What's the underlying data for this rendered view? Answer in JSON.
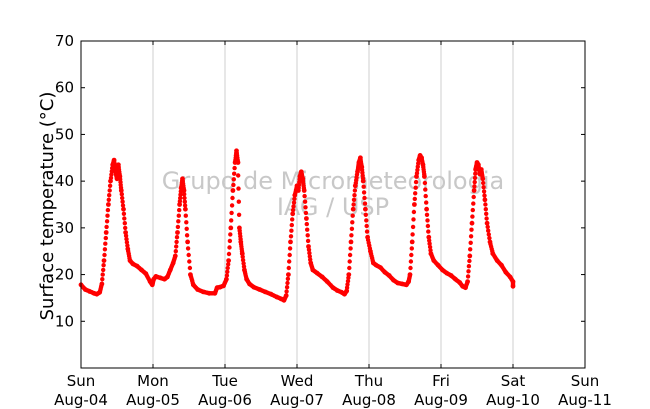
{
  "chart_data": {
    "type": "scatter",
    "ylabel": "Surface temperature (°C)",
    "xlabel": "",
    "title": "",
    "ylim": [
      0,
      70
    ],
    "yticks": [
      10,
      20,
      30,
      40,
      50,
      60,
      70
    ],
    "xlim": [
      0,
      7
    ],
    "xticks": [
      {
        "day": "Sun",
        "date": "Aug-04"
      },
      {
        "day": "Mon",
        "date": "Aug-05"
      },
      {
        "day": "Tue",
        "date": "Aug-06"
      },
      {
        "day": "Wed",
        "date": "Aug-07"
      },
      {
        "day": "Thu",
        "date": "Aug-08"
      },
      {
        "day": "Fri",
        "date": "Aug-09"
      },
      {
        "day": "Sat",
        "date": "Aug-10"
      },
      {
        "day": "Sun",
        "date": "Aug-11"
      }
    ],
    "grid": "vertical",
    "watermark": [
      "Grupo de Micrometeorologia",
      "IAG / USP"
    ],
    "series": [
      {
        "color": "#ff0000",
        "points": [
          [
            0.0,
            17.8
          ],
          [
            0.06,
            16.8
          ],
          [
            0.12,
            16.4
          ],
          [
            0.18,
            16.0
          ],
          [
            0.22,
            15.8
          ],
          [
            0.26,
            16.2
          ],
          [
            0.29,
            18.0
          ],
          [
            0.32,
            23.0
          ],
          [
            0.35,
            29.0
          ],
          [
            0.38,
            35.0
          ],
          [
            0.41,
            40.0
          ],
          [
            0.44,
            43.5
          ],
          [
            0.46,
            44.5
          ],
          [
            0.48,
            42.0
          ],
          [
            0.5,
            40.5
          ],
          [
            0.52,
            43.5
          ],
          [
            0.54,
            41.0
          ],
          [
            0.56,
            38.0
          ],
          [
            0.59,
            34.0
          ],
          [
            0.62,
            29.0
          ],
          [
            0.65,
            25.5
          ],
          [
            0.68,
            23.0
          ],
          [
            0.72,
            22.3
          ],
          [
            0.78,
            21.8
          ],
          [
            0.84,
            21.0
          ],
          [
            0.9,
            20.2
          ],
          [
            0.96,
            18.5
          ],
          [
            0.99,
            17.8
          ],
          [
            1.01,
            19.0
          ],
          [
            1.04,
            19.6
          ],
          [
            1.1,
            19.3
          ],
          [
            1.16,
            19.0
          ],
          [
            1.2,
            19.5
          ],
          [
            1.24,
            21.0
          ],
          [
            1.28,
            22.5
          ],
          [
            1.31,
            24.0
          ],
          [
            1.34,
            29.0
          ],
          [
            1.37,
            35.0
          ],
          [
            1.39,
            38.5
          ],
          [
            1.41,
            40.5
          ],
          [
            1.43,
            38.0
          ],
          [
            1.45,
            34.0
          ],
          [
            1.48,
            27.0
          ],
          [
            1.52,
            20.0
          ],
          [
            1.56,
            17.8
          ],
          [
            1.62,
            16.8
          ],
          [
            1.7,
            16.3
          ],
          [
            1.78,
            16.0
          ],
          [
            1.86,
            16.0
          ],
          [
            1.89,
            17.2
          ],
          [
            1.93,
            17.3
          ],
          [
            1.98,
            17.6
          ],
          [
            2.02,
            19.0
          ],
          [
            2.05,
            23.0
          ],
          [
            2.08,
            30.0
          ],
          [
            2.11,
            38.0
          ],
          [
            2.14,
            44.0
          ],
          [
            2.16,
            46.5
          ],
          [
            2.18,
            44.0
          ],
          [
            2.2,
            30.0
          ],
          [
            2.22,
            27.0
          ],
          [
            2.24,
            24.5
          ],
          [
            2.27,
            21.0
          ],
          [
            2.3,
            19.0
          ],
          [
            2.34,
            18.0
          ],
          [
            2.4,
            17.3
          ],
          [
            2.48,
            16.8
          ],
          [
            2.56,
            16.3
          ],
          [
            2.64,
            15.8
          ],
          [
            2.72,
            15.2
          ],
          [
            2.78,
            14.8
          ],
          [
            2.82,
            14.5
          ],
          [
            2.85,
            15.5
          ],
          [
            2.88,
            20.0
          ],
          [
            2.91,
            27.0
          ],
          [
            2.94,
            33.0
          ],
          [
            2.97,
            37.0
          ],
          [
            3.0,
            39.0
          ],
          [
            3.02,
            38.0
          ],
          [
            3.04,
            41.0
          ],
          [
            3.06,
            42.0
          ],
          [
            3.08,
            40.5
          ],
          [
            3.1,
            38.0
          ],
          [
            3.13,
            32.0
          ],
          [
            3.16,
            26.0
          ],
          [
            3.19,
            22.5
          ],
          [
            3.22,
            21.0
          ],
          [
            3.28,
            20.3
          ],
          [
            3.35,
            19.5
          ],
          [
            3.42,
            18.5
          ],
          [
            3.5,
            17.2
          ],
          [
            3.56,
            16.6
          ],
          [
            3.62,
            16.2
          ],
          [
            3.66,
            15.8
          ],
          [
            3.69,
            16.5
          ],
          [
            3.72,
            20.0
          ],
          [
            3.75,
            27.0
          ],
          [
            3.78,
            34.0
          ],
          [
            3.81,
            39.0
          ],
          [
            3.84,
            42.0
          ],
          [
            3.86,
            44.0
          ],
          [
            3.88,
            45.0
          ],
          [
            3.9,
            43.0
          ],
          [
            3.92,
            40.0
          ],
          [
            3.95,
            34.0
          ],
          [
            3.98,
            28.0
          ],
          [
            4.02,
            25.0
          ],
          [
            4.06,
            22.5
          ],
          [
            4.1,
            22.0
          ],
          [
            4.16,
            21.5
          ],
          [
            4.22,
            20.5
          ],
          [
            4.28,
            19.8
          ],
          [
            4.34,
            18.8
          ],
          [
            4.4,
            18.2
          ],
          [
            4.46,
            18.0
          ],
          [
            4.52,
            17.8
          ],
          [
            4.55,
            18.5
          ],
          [
            4.57,
            20.0
          ],
          [
            4.6,
            27.0
          ],
          [
            4.63,
            35.0
          ],
          [
            4.66,
            41.0
          ],
          [
            4.69,
            44.5
          ],
          [
            4.71,
            45.5
          ],
          [
            4.73,
            45.0
          ],
          [
            4.75,
            43.5
          ],
          [
            4.77,
            41.0
          ],
          [
            4.8,
            34.0
          ],
          [
            4.83,
            28.0
          ],
          [
            4.86,
            24.5
          ],
          [
            4.9,
            23.0
          ],
          [
            4.96,
            22.0
          ],
          [
            5.02,
            21.0
          ],
          [
            5.08,
            20.3
          ],
          [
            5.14,
            19.8
          ],
          [
            5.2,
            19.0
          ],
          [
            5.26,
            18.3
          ],
          [
            5.3,
            17.5
          ],
          [
            5.34,
            17.2
          ],
          [
            5.37,
            18.5
          ],
          [
            5.4,
            24.0
          ],
          [
            5.43,
            31.0
          ],
          [
            5.46,
            38.0
          ],
          [
            5.48,
            42.5
          ],
          [
            5.5,
            44.0
          ],
          [
            5.52,
            43.5
          ],
          [
            5.54,
            41.5
          ],
          [
            5.56,
            42.5
          ],
          [
            5.58,
            40.5
          ],
          [
            5.61,
            36.0
          ],
          [
            5.64,
            31.0
          ],
          [
            5.68,
            27.0
          ],
          [
            5.72,
            24.5
          ],
          [
            5.78,
            23.0
          ],
          [
            5.84,
            22.0
          ],
          [
            5.9,
            20.5
          ],
          [
            5.96,
            19.5
          ],
          [
            6.0,
            18.5
          ],
          [
            6.0,
            17.5
          ]
        ]
      }
    ]
  }
}
